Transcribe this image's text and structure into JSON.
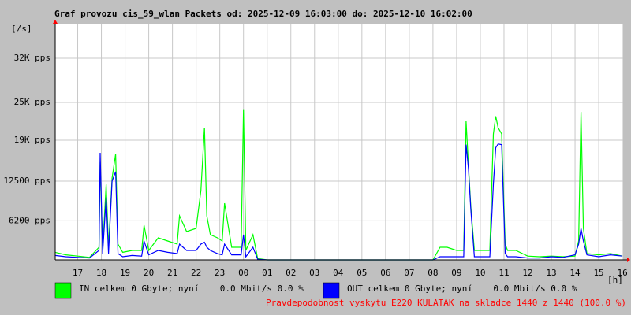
{
  "chart_data": {
    "type": "line",
    "title": "Graf provozu cis_59_wlan Packets od: 2025-12-09 16:03:00 do: 2025-12-10 16:02:00",
    "y_label": "[/s]",
    "x_label": "[h]",
    "xlim": [
      16.05,
      40.03
    ],
    "ylim": [
      0,
      37500
    ],
    "yticks": [
      {
        "value": 6200,
        "label": "6200 pps"
      },
      {
        "value": 12500,
        "label": "12500 pps"
      },
      {
        "value": 19000,
        "label": "19K pps"
      },
      {
        "value": 25000,
        "label": "25K pps"
      },
      {
        "value": 32000,
        "label": "32K pps"
      }
    ],
    "xticks": [
      17,
      18,
      19,
      20,
      21,
      22,
      23,
      {
        "value": 24,
        "label": "00"
      },
      {
        "value": 25,
        "label": "01"
      },
      {
        "value": 26,
        "label": "02"
      },
      {
        "value": 27,
        "label": "03"
      },
      {
        "value": 28,
        "label": "04"
      },
      {
        "value": 29,
        "label": "05"
      },
      {
        "value": 30,
        "label": "06"
      },
      {
        "value": 31,
        "label": "07"
      },
      {
        "value": 32,
        "label": "08"
      },
      {
        "value": 33,
        "label": "09"
      },
      {
        "value": 34,
        "label": "10"
      },
      {
        "value": 35,
        "label": "11"
      },
      {
        "value": 36,
        "label": "12"
      },
      {
        "value": 37,
        "label": "13"
      },
      {
        "value": 38,
        "label": "14"
      },
      {
        "value": 39,
        "label": "15"
      },
      {
        "value": 40,
        "label": "16"
      }
    ],
    "grid": true,
    "x": [
      16.05,
      16.5,
      17.0,
      17.5,
      17.9,
      17.95,
      18.05,
      18.2,
      18.3,
      18.45,
      18.6,
      18.7,
      18.9,
      19.3,
      19.7,
      19.8,
      20.0,
      20.4,
      20.8,
      21.2,
      21.3,
      21.6,
      22.0,
      22.2,
      22.35,
      22.45,
      22.6,
      22.9,
      23.1,
      23.2,
      23.5,
      23.9,
      24.0,
      24.1,
      24.4,
      24.6,
      25,
      26,
      27,
      28,
      29,
      30,
      31,
      32,
      32.3,
      32.6,
      33,
      33.3,
      33.4,
      33.5,
      33.6,
      33.75,
      34,
      34.4,
      34.55,
      34.65,
      34.75,
      34.9,
      35.05,
      35.15,
      35.5,
      36,
      36.5,
      37,
      37.5,
      38,
      38.15,
      38.25,
      38.35,
      38.5,
      39,
      39.5,
      40
    ],
    "series": [
      {
        "name": "IN celkem 0 Gbyte; nyní    0.0 Mbit/s 0.0 %",
        "color": "#00ff00",
        "values": [
          1200,
          800,
          600,
          400,
          2000,
          15500,
          1500,
          12000,
          2000,
          13000,
          16800,
          2500,
          1200,
          1500,
          1500,
          5500,
          1500,
          3500,
          3000,
          2500,
          7000,
          4500,
          5000,
          11000,
          21000,
          7000,
          4000,
          3500,
          3000,
          9000,
          2000,
          2000,
          23800,
          1500,
          4000,
          200,
          0,
          0,
          0,
          0,
          0,
          0,
          0,
          0,
          2000,
          2000,
          1500,
          1500,
          22000,
          15000,
          8500,
          1500,
          1500,
          1500,
          20000,
          22800,
          21000,
          20000,
          2500,
          1500,
          1500,
          600,
          500,
          600,
          500,
          600,
          3000,
          23500,
          5000,
          1000,
          800,
          1000,
          600
        ]
      },
      {
        "name": "OUT celkem 0 Gbyte; nyní    0.0 Mbit/s 0.0 %",
        "color": "#0000ff",
        "values": [
          700,
          500,
          400,
          300,
          1500,
          17000,
          1000,
          10000,
          1000,
          12500,
          14000,
          1000,
          500,
          700,
          600,
          3000,
          800,
          1500,
          1200,
          1000,
          2500,
          1500,
          1500,
          2500,
          2800,
          2000,
          1500,
          1000,
          800,
          2500,
          800,
          800,
          4000,
          500,
          2000,
          100,
          0,
          0,
          0,
          0,
          0,
          0,
          0,
          0,
          500,
          500,
          500,
          500,
          18300,
          14500,
          8000,
          500,
          500,
          500,
          12000,
          17800,
          18400,
          18300,
          1000,
          500,
          500,
          300,
          300,
          500,
          400,
          800,
          2500,
          5000,
          3000,
          800,
          500,
          800,
          600
        ]
      }
    ],
    "footer": "Pravdepodobnost vyskytu E220 KULATAK na skladce 1440 z 1440 (100.0 %)"
  }
}
